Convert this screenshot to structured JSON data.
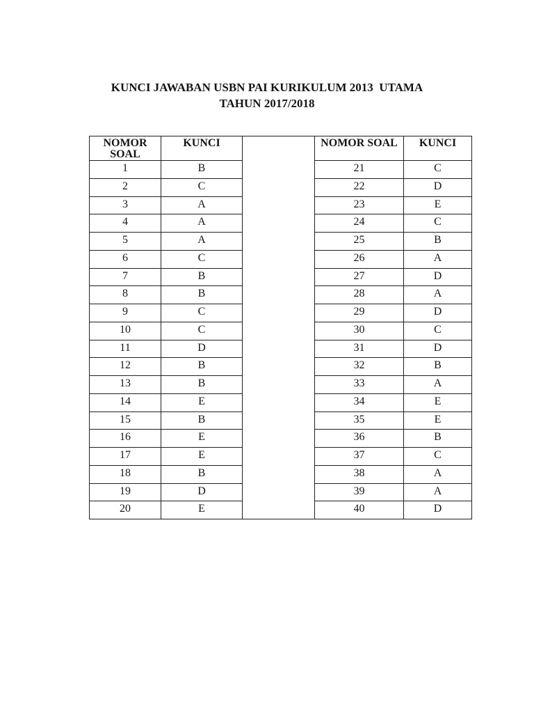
{
  "page": {
    "title_line1": "KUNCI JAWABAN USBN PAI KURIKULUM 2013  UTAMA",
    "title_line2": "TAHUN 2017/2018"
  },
  "table": {
    "left": {
      "col1_header": "NOMOR SOAL",
      "col2_header": "KUNCI",
      "rows": [
        {
          "no": "1",
          "kunci": "B"
        },
        {
          "no": "2",
          "kunci": "C"
        },
        {
          "no": "3",
          "kunci": "A"
        },
        {
          "no": "4",
          "kunci": "A"
        },
        {
          "no": "5",
          "kunci": "A"
        },
        {
          "no": "6",
          "kunci": "C"
        },
        {
          "no": "7",
          "kunci": "B"
        },
        {
          "no": "8",
          "kunci": "B"
        },
        {
          "no": "9",
          "kunci": "C"
        },
        {
          "no": "10",
          "kunci": "C"
        },
        {
          "no": "11",
          "kunci": "D"
        },
        {
          "no": "12",
          "kunci": "B"
        },
        {
          "no": "13",
          "kunci": "B"
        },
        {
          "no": "14",
          "kunci": "E"
        },
        {
          "no": "15",
          "kunci": "B"
        },
        {
          "no": "16",
          "kunci": "E"
        },
        {
          "no": "17",
          "kunci": "E"
        },
        {
          "no": "18",
          "kunci": "B"
        },
        {
          "no": "19",
          "kunci": "D"
        },
        {
          "no": "20",
          "kunci": "E"
        }
      ]
    },
    "right": {
      "col1_header": "NOMOR SOAL",
      "col2_header": "KUNCI",
      "rows": [
        {
          "no": "21",
          "kunci": "C"
        },
        {
          "no": "22",
          "kunci": "D"
        },
        {
          "no": "23",
          "kunci": "E"
        },
        {
          "no": "24",
          "kunci": "C"
        },
        {
          "no": "25",
          "kunci": "B"
        },
        {
          "no": "26",
          "kunci": "A"
        },
        {
          "no": "27",
          "kunci": "D"
        },
        {
          "no": "28",
          "kunci": "A"
        },
        {
          "no": "29",
          "kunci": "D"
        },
        {
          "no": "30",
          "kunci": "C"
        },
        {
          "no": "31",
          "kunci": "D"
        },
        {
          "no": "32",
          "kunci": "B"
        },
        {
          "no": "33",
          "kunci": "A"
        },
        {
          "no": "34",
          "kunci": "E"
        },
        {
          "no": "35",
          "kunci": "E"
        },
        {
          "no": "36",
          "kunci": "B"
        },
        {
          "no": "37",
          "kunci": "C"
        },
        {
          "no": "38",
          "kunci": "A"
        },
        {
          "no": "39",
          "kunci": "A"
        },
        {
          "no": "40",
          "kunci": "D"
        }
      ]
    }
  },
  "colors": {
    "page_background": "#ffffff",
    "text": "#161616",
    "table_border": "#1f1f1f"
  }
}
